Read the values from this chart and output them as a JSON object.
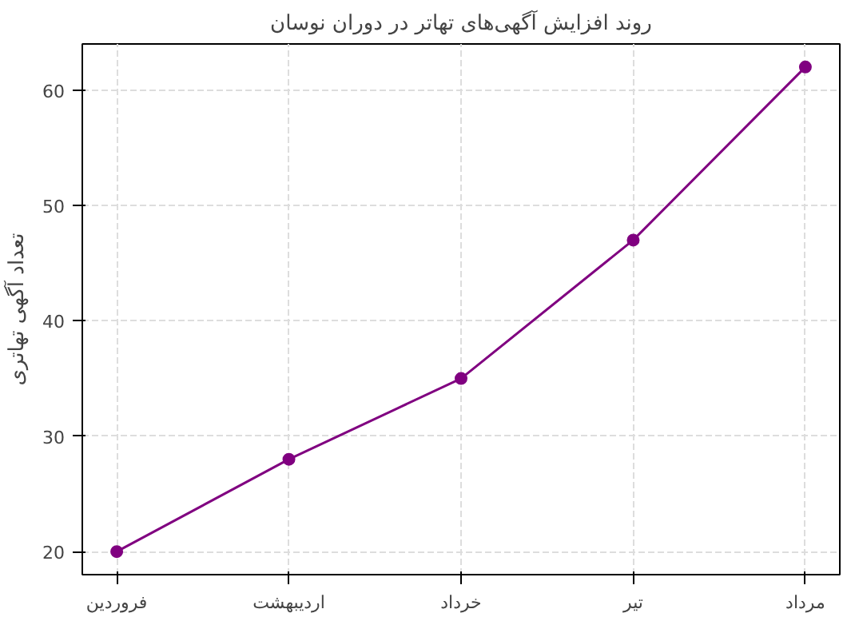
{
  "chart_data": {
    "type": "line",
    "title": "روند افزایش آگهی‌های تهاتر در دوران نوسان",
    "ylabel": "تعداد آگهی تهاتری",
    "categories": [
      "فروردین",
      "اردیبهشت",
      "خرداد",
      "تیر",
      "مرداد"
    ],
    "series": [
      {
        "color": "#800080",
        "values": [
          20,
          28,
          35,
          47,
          62
        ]
      }
    ],
    "ylim": [
      18,
      64
    ],
    "yticks": [
      20,
      30,
      40,
      50,
      60
    ],
    "grid": true,
    "marker": "circle",
    "line_style": "solid"
  }
}
